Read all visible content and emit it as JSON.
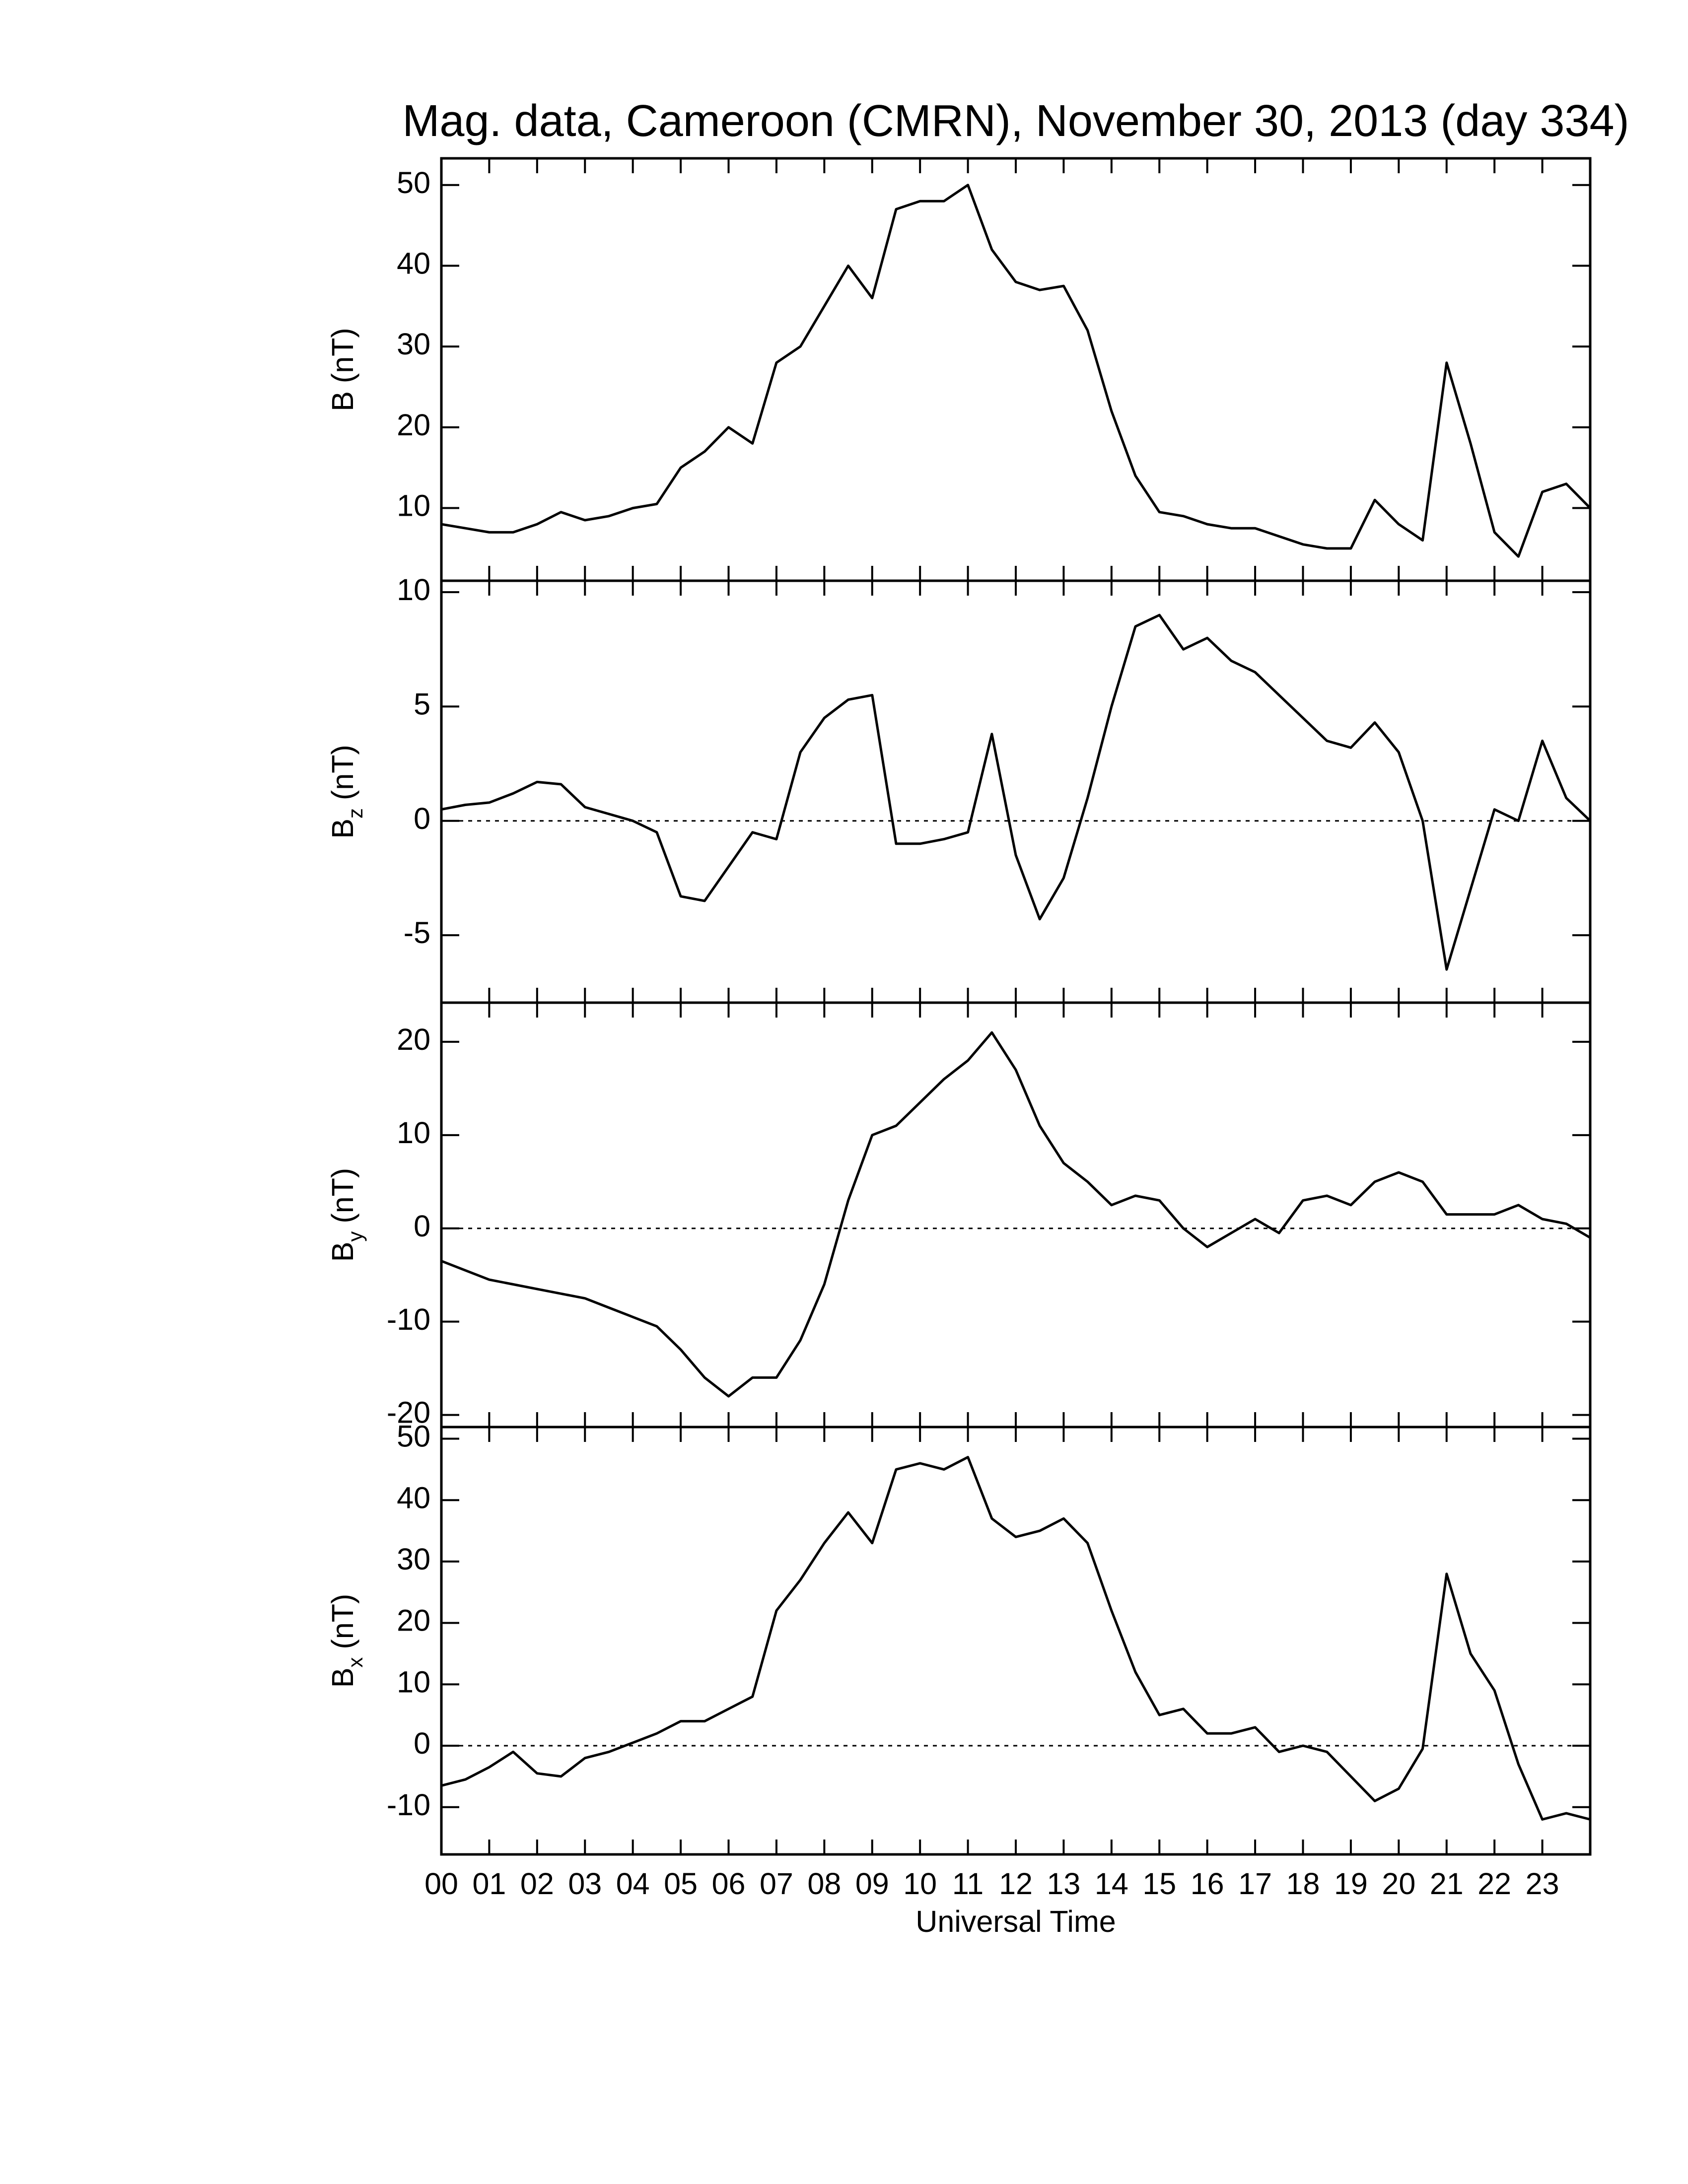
{
  "chart_data": [
    {
      "type": "line",
      "title": "Mag. data, Cameroon (CMRN), November 30, 2013 (day 334)",
      "ylabel": "B",
      "ylabel_unit": "(nT)",
      "color": "#000000",
      "zero_line": false,
      "xlim": [
        0,
        24
      ],
      "ylim": [
        1,
        53.3
      ],
      "yticks": [
        10,
        20,
        30,
        40,
        50
      ],
      "x": [
        0,
        0.5,
        1,
        1.5,
        2,
        2.5,
        3,
        3.5,
        4,
        4.5,
        5,
        5.5,
        6,
        6.5,
        7,
        7.5,
        8,
        8.5,
        9,
        9.5,
        10,
        10.5,
        11,
        11.5,
        12,
        12.5,
        13,
        13.5,
        14,
        14.5,
        15,
        15.5,
        16,
        16.5,
        17,
        17.5,
        18,
        18.5,
        19,
        19.5,
        20,
        20.5,
        21,
        21.5,
        22,
        22.5,
        23,
        23.5,
        24
      ],
      "values": [
        8,
        7.5,
        7,
        7,
        8,
        9.5,
        8.5,
        9,
        10,
        10.5,
        15,
        17,
        20,
        18,
        28,
        30,
        35,
        40,
        36,
        47,
        48,
        48,
        50,
        42,
        38,
        37,
        37.5,
        32,
        22,
        14,
        9.5,
        9,
        8,
        7.5,
        7.5,
        6.5,
        5.5,
        5,
        5,
        11,
        8,
        6,
        28,
        18,
        7,
        4,
        12,
        13,
        10
      ]
    },
    {
      "type": "line",
      "ylabel": "B",
      "ylabel_sub": "z",
      "ylabel_unit": "(nT)",
      "color": "#000000",
      "zero_line": true,
      "xlim": [
        0,
        24
      ],
      "ylim": [
        -7.95,
        10.5
      ],
      "yticks": [
        -5,
        0,
        5,
        10
      ],
      "x": [
        0,
        0.5,
        1,
        1.5,
        2,
        2.5,
        3,
        3.5,
        4,
        4.5,
        5,
        5.5,
        6,
        6.5,
        7,
        7.5,
        8,
        8.5,
        9,
        9.5,
        10,
        10.5,
        11,
        11.5,
        12,
        12.5,
        13,
        13.5,
        14,
        14.5,
        15,
        15.5,
        16,
        16.5,
        17,
        17.5,
        18,
        18.5,
        19,
        19.5,
        20,
        20.5,
        21,
        21.5,
        22,
        22.5,
        23,
        23.5,
        24
      ],
      "values": [
        0.5,
        0.7,
        0.8,
        1.2,
        1.7,
        1.6,
        0.6,
        0.3,
        0,
        -0.5,
        -3.3,
        -3.5,
        -2,
        -0.5,
        -0.8,
        3,
        4.5,
        5.3,
        5.5,
        -1,
        -1,
        -0.8,
        -0.5,
        3.8,
        -1.5,
        -4.3,
        -2.5,
        1,
        5,
        8.5,
        9,
        7.5,
        8,
        7,
        6.5,
        5.5,
        4.5,
        3.5,
        3.2,
        4.3,
        3,
        0,
        -6.5,
        -3,
        0.5,
        0,
        3.5,
        1,
        0
      ]
    },
    {
      "type": "line",
      "ylabel": "B",
      "ylabel_sub": "y",
      "ylabel_unit": "(nT)",
      "color": "#000000",
      "zero_line": true,
      "xlim": [
        0,
        24
      ],
      "ylim": [
        -21.3,
        24.2
      ],
      "yticks": [
        -20,
        -10,
        0,
        10,
        20
      ],
      "x": [
        0,
        0.5,
        1,
        1.5,
        2,
        2.5,
        3,
        3.5,
        4,
        4.5,
        5,
        5.5,
        6,
        6.5,
        7,
        7.5,
        8,
        8.5,
        9,
        9.5,
        10,
        10.5,
        11,
        11.5,
        12,
        12.5,
        13,
        13.5,
        14,
        14.5,
        15,
        15.5,
        16,
        16.5,
        17,
        17.5,
        18,
        18.5,
        19,
        19.5,
        20,
        20.5,
        21,
        21.5,
        22,
        22.5,
        23,
        23.5,
        24
      ],
      "values": [
        -3.5,
        -4.5,
        -5.5,
        -6,
        -6.5,
        -7,
        -7.5,
        -8.5,
        -9.5,
        -10.5,
        -13,
        -16,
        -18,
        -16,
        -16,
        -12,
        -6,
        3,
        10,
        11,
        13.5,
        16,
        18,
        21,
        17,
        11,
        7,
        5,
        2.5,
        3.5,
        3,
        0,
        -2,
        -0.5,
        1,
        -0.5,
        3,
        3.5,
        2.5,
        5,
        6,
        5,
        1.5,
        1.5,
        1.5,
        2.5,
        1,
        0.5,
        -1
      ]
    },
    {
      "type": "line",
      "ylabel": "B",
      "ylabel_sub": "x",
      "ylabel_unit": "(nT)",
      "xlabel": "Universal Time",
      "color": "#000000",
      "zero_line": true,
      "xlim": [
        0,
        24
      ],
      "ylim": [
        -17.7,
        51.9
      ],
      "yticks": [
        -10,
        0,
        10,
        20,
        30,
        40,
        50
      ],
      "xticks": [
        {
          "value": 0,
          "label": "00"
        },
        {
          "value": 1,
          "label": "01"
        },
        {
          "value": 2,
          "label": "02"
        },
        {
          "value": 3,
          "label": "03"
        },
        {
          "value": 4,
          "label": "04"
        },
        {
          "value": 5,
          "label": "05"
        },
        {
          "value": 6,
          "label": "06"
        },
        {
          "value": 7,
          "label": "07"
        },
        {
          "value": 8,
          "label": "08"
        },
        {
          "value": 9,
          "label": "09"
        },
        {
          "value": 10,
          "label": "10"
        },
        {
          "value": 11,
          "label": "11"
        },
        {
          "value": 12,
          "label": "12"
        },
        {
          "value": 13,
          "label": "13"
        },
        {
          "value": 14,
          "label": "14"
        },
        {
          "value": 15,
          "label": "15"
        },
        {
          "value": 16,
          "label": "16"
        },
        {
          "value": 17,
          "label": "17"
        },
        {
          "value": 18,
          "label": "18"
        },
        {
          "value": 19,
          "label": "19"
        },
        {
          "value": 20,
          "label": "20"
        },
        {
          "value": 21,
          "label": "21"
        },
        {
          "value": 22,
          "label": "22"
        },
        {
          "value": 23,
          "label": "23"
        }
      ],
      "x": [
        0,
        0.5,
        1,
        1.5,
        2,
        2.5,
        3,
        3.5,
        4,
        4.5,
        5,
        5.5,
        6,
        6.5,
        7,
        7.5,
        8,
        8.5,
        9,
        9.5,
        10,
        10.5,
        11,
        11.5,
        12,
        12.5,
        13,
        13.5,
        14,
        14.5,
        15,
        15.5,
        16,
        16.5,
        17,
        17.5,
        18,
        18.5,
        19,
        19.5,
        20,
        20.5,
        21,
        21.5,
        22,
        22.5,
        23,
        23.5,
        24
      ],
      "values": [
        -6.5,
        -5.5,
        -3.5,
        -1,
        -4.5,
        -5,
        -2,
        -1,
        0.5,
        2,
        4,
        4,
        6,
        8,
        22,
        27,
        33,
        38,
        33,
        45,
        46,
        45,
        47,
        37,
        34,
        35,
        37,
        33,
        22,
        12,
        5,
        6,
        2,
        2,
        3,
        -1,
        0,
        -1,
        -5,
        -9,
        -7,
        -0.5,
        28,
        15,
        9,
        -3,
        -12,
        -11,
        -12
      ]
    }
  ]
}
